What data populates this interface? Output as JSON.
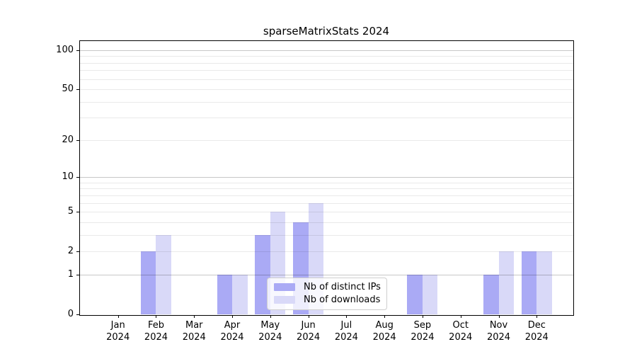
{
  "title": "sparseMatrixStats 2024",
  "chart_data": {
    "type": "bar",
    "title": "sparseMatrixStats 2024",
    "categories": [
      "Jan",
      "Feb",
      "Mar",
      "Apr",
      "May",
      "Jun",
      "Jul",
      "Aug",
      "Sep",
      "Oct",
      "Nov",
      "Dec"
    ],
    "category_year": "2024",
    "series": [
      {
        "name": "Nb of distinct IPs",
        "color": "#aaaaf5",
        "values": [
          0,
          2,
          0,
          1,
          3,
          4,
          0,
          0,
          1,
          0,
          1,
          2
        ]
      },
      {
        "name": "Nb of downloads",
        "color": "#d9d9f8",
        "values": [
          0,
          3,
          0,
          1,
          5,
          6,
          0,
          0,
          1,
          0,
          2,
          2
        ]
      }
    ],
    "yscale": "log1p",
    "ylim": [
      0,
      118
    ],
    "y_ticks": [
      0,
      1,
      2,
      5,
      10,
      20,
      50,
      100
    ],
    "y_major_gridlines": [
      1,
      10,
      100
    ],
    "y_minor_gridlines": [
      2,
      3,
      4,
      5,
      6,
      7,
      8,
      9,
      20,
      30,
      40,
      50,
      60,
      70,
      80,
      90
    ],
    "xlabel": "",
    "ylabel": "",
    "grid": true,
    "legend": {
      "position": "bottom-center",
      "entries": [
        "Nb of distinct IPs",
        "Nb of downloads"
      ]
    }
  }
}
